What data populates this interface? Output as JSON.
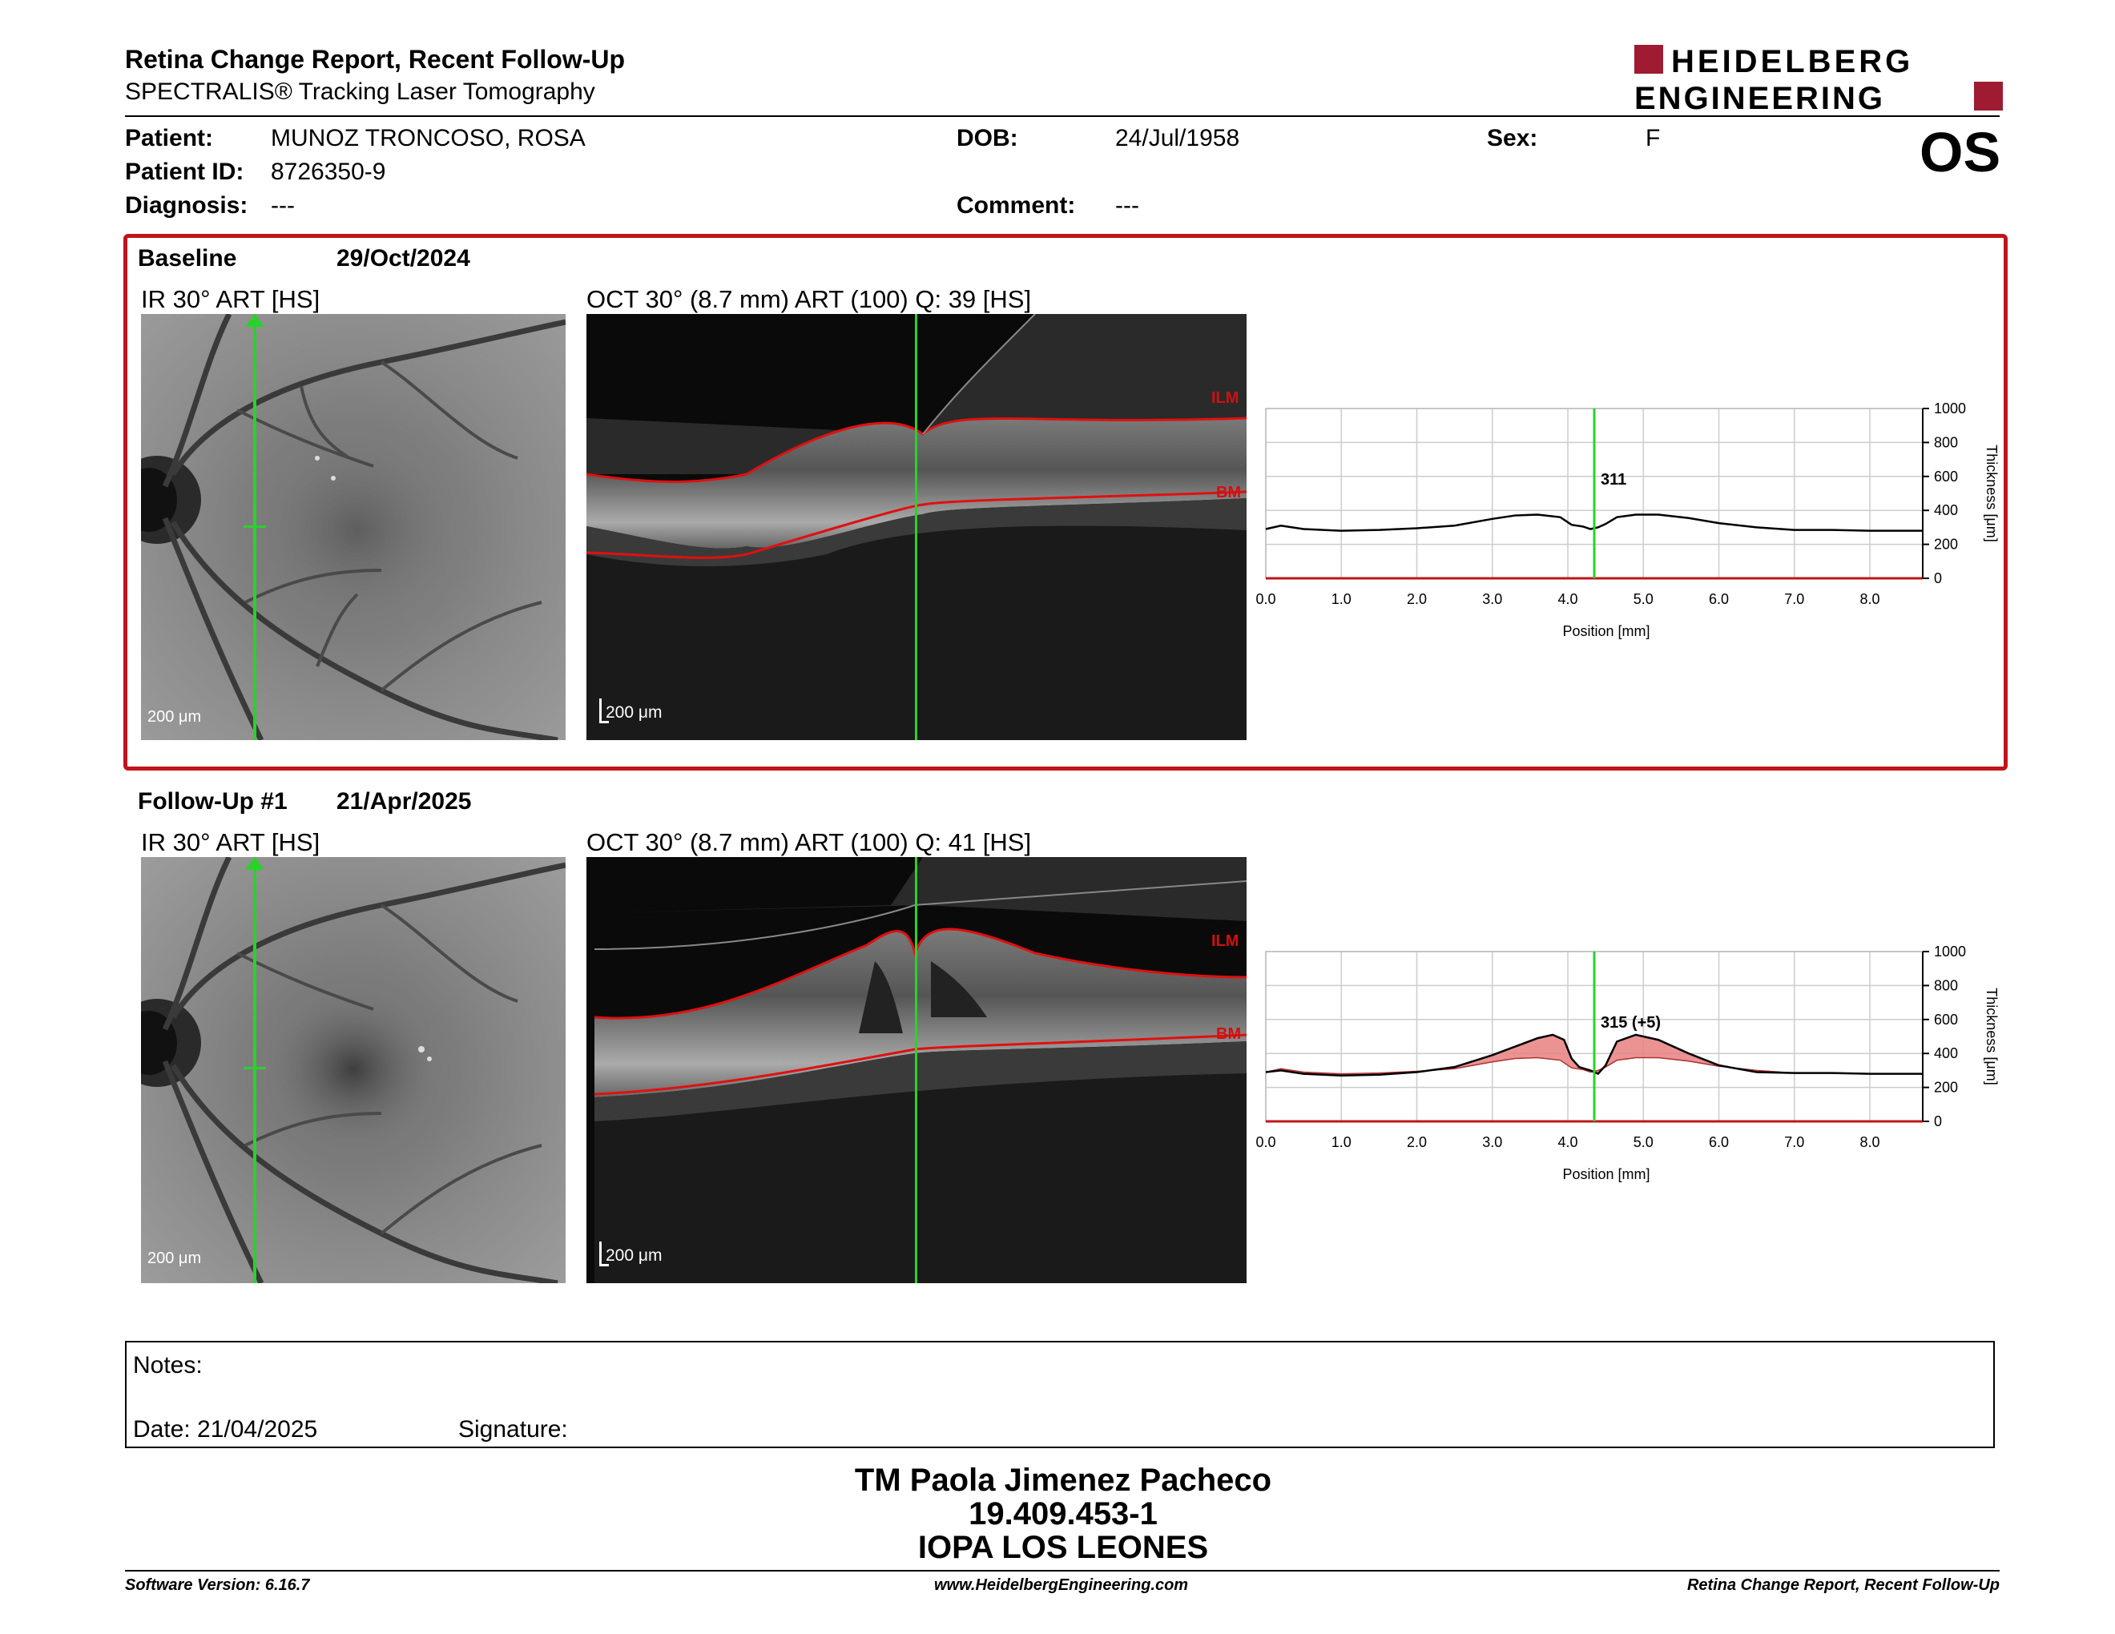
{
  "report": {
    "title": "Retina Change Report, Recent Follow-Up",
    "subtitle": "SPECTRALIS® Tracking Laser Tomography",
    "logo_line1": "HEIDELBERG",
    "logo_line2": "ENGINEERING",
    "eye": "OS",
    "brand_color": "#9e1b32",
    "highlight_color": "#c0141a"
  },
  "patient": {
    "name_label": "Patient:",
    "name": "MUNOZ TRONCOSO, ROSA",
    "id_label": "Patient ID:",
    "id": "8726350-9",
    "diagnosis_label": "Diagnosis:",
    "diagnosis": "---",
    "dob_label": "DOB:",
    "dob": "24/Jul/1958",
    "comment_label": "Comment:",
    "comment": "---",
    "sex_label": "Sex:",
    "sex": "F"
  },
  "exams": [
    {
      "label": "Baseline",
      "date": "29/Oct/2024",
      "ir_label": "IR 30° ART [HS]",
      "oct_label": "OCT 30° (8.7 mm) ART (100) Q: 39 [HS]",
      "scale_ir": "200 μm",
      "scale_oct": "200 μm",
      "ilm": "ILM",
      "bm": "BM",
      "thickness_at_cursor": "311"
    },
    {
      "label": "Follow-Up #1",
      "date": "21/Apr/2025",
      "ir_label": "IR 30° ART [HS]",
      "oct_label": "OCT 30° (8.7 mm) ART (100) Q: 41 [HS]",
      "scale_ir": "200 μm",
      "scale_oct": "200 μm",
      "ilm": "ILM",
      "bm": "BM",
      "thickness_at_cursor": "315 (+5)"
    }
  ],
  "chart_data": [
    {
      "type": "line",
      "xlabel": "Position [mm]",
      "ylabel": "Thickness [μm]",
      "xlim": [
        0,
        8.7
      ],
      "ylim": [
        0,
        1000
      ],
      "xticks": [
        "0.0",
        "1.0",
        "2.0",
        "3.0",
        "4.0",
        "5.0",
        "6.0",
        "7.0",
        "8.0"
      ],
      "yticks": [
        "0",
        "200",
        "400",
        "600",
        "800",
        "1000"
      ],
      "cursor_x": 4.35,
      "cursor_label": "311",
      "series": [
        {
          "x": [
            0,
            0.2,
            0.5,
            1,
            1.5,
            2,
            2.5,
            3,
            3.3,
            3.6,
            3.9,
            4.05,
            4.2,
            4.3,
            4.4,
            4.5,
            4.65,
            4.9,
            5.2,
            5.6,
            6,
            6.5,
            7,
            7.5,
            8,
            8.7
          ],
          "y": [
            290,
            310,
            290,
            280,
            285,
            295,
            310,
            350,
            370,
            375,
            360,
            315,
            305,
            290,
            300,
            320,
            360,
            375,
            375,
            355,
            325,
            300,
            285,
            285,
            280,
            280
          ]
        }
      ]
    },
    {
      "type": "line",
      "xlabel": "Position [mm]",
      "ylabel": "Thickness [μm]",
      "xlim": [
        0,
        8.7
      ],
      "ylim": [
        0,
        1000
      ],
      "xticks": [
        "0.0",
        "1.0",
        "2.0",
        "3.0",
        "4.0",
        "5.0",
        "6.0",
        "7.0",
        "8.0"
      ],
      "yticks": [
        "0",
        "200",
        "400",
        "600",
        "800",
        "1000"
      ],
      "cursor_x": 4.35,
      "cursor_label": "315 (+5)",
      "series": [
        {
          "x": [
            0,
            0.2,
            0.5,
            1,
            1.5,
            2,
            2.5,
            3,
            3.3,
            3.6,
            3.8,
            3.95,
            4.05,
            4.15,
            4.3,
            4.4,
            4.5,
            4.65,
            4.9,
            5.2,
            5.6,
            6,
            6.5,
            7,
            7.5,
            8,
            8.7
          ],
          "y": [
            290,
            300,
            280,
            270,
            275,
            290,
            320,
            390,
            440,
            490,
            510,
            480,
            370,
            320,
            300,
            280,
            330,
            470,
            510,
            480,
            400,
            330,
            290,
            285,
            285,
            280,
            280
          ]
        }
      ],
      "baseline_series": {
        "x": [
          0,
          0.2,
          0.5,
          1,
          1.5,
          2,
          2.5,
          3,
          3.3,
          3.6,
          3.9,
          4.05,
          4.2,
          4.3,
          4.4,
          4.5,
          4.65,
          4.9,
          5.2,
          5.6,
          6,
          6.5,
          7,
          7.5,
          8,
          8.7
        ],
        "y": [
          290,
          310,
          290,
          280,
          285,
          295,
          310,
          350,
          370,
          375,
          360,
          315,
          305,
          290,
          300,
          320,
          360,
          375,
          375,
          355,
          325,
          300,
          285,
          285,
          280,
          280
        ]
      },
      "change_color": "#e88080"
    }
  ],
  "notes": {
    "notes_label": "Notes:",
    "date_label": "Date: 21/04/2025",
    "signature_label": "Signature:"
  },
  "signature_block": {
    "name": "TM Paola Jimenez Pacheco",
    "rut": "19.409.453-1",
    "institution": "IOPA LOS LEONES"
  },
  "footer": {
    "version": "Software Version: 6.16.7",
    "url": "www.HeidelbergEngineering.com",
    "report": "Retina Change Report, Recent Follow-Up"
  }
}
